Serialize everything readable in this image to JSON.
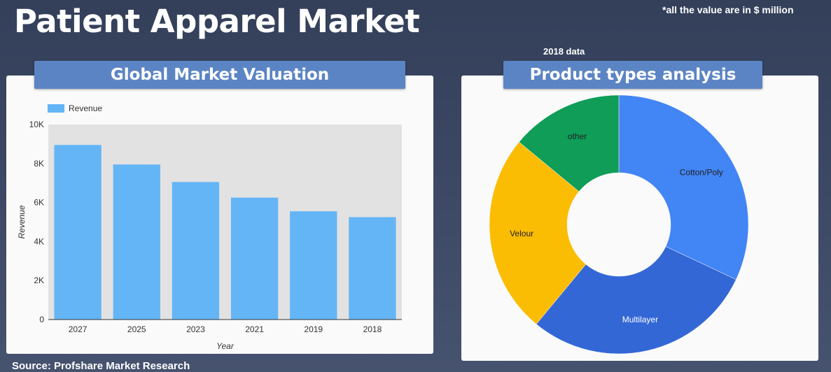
{
  "page": {
    "title": "Patient Apparel Market",
    "note": "*all the value are in $ million",
    "date_note": "2018 data",
    "source": "Source: Profshare Market Research"
  },
  "panels": {
    "left_title": "Global Market Valuation",
    "right_title": "Product types analysis"
  },
  "colors": {
    "bar": "#64b5f6",
    "cotton_poly": "#4285f4",
    "multilayer": "#3367d6",
    "velour": "#fbbc04",
    "other": "#0f9d58"
  },
  "chart_data": [
    {
      "type": "bar",
      "title": "Global Market Valuation",
      "categories": [
        "2027",
        "2025",
        "2023",
        "2021",
        "2019",
        "2018"
      ],
      "series": [
        {
          "name": "Revenue",
          "values": [
            8950,
            7950,
            7050,
            6250,
            5550,
            5250
          ]
        }
      ],
      "xlabel": "Year",
      "ylabel": "Revenue",
      "ylim": [
        0,
        10000
      ],
      "yticks": [
        "0",
        "2K",
        "4K",
        "6K",
        "8K",
        "10K"
      ],
      "legend": "top-left",
      "grid": false
    },
    {
      "type": "pie",
      "title": "Product types analysis",
      "donut": true,
      "slices": [
        {
          "label": "Cotton/Poly",
          "value": 32
        },
        {
          "label": "Multilayer",
          "value": 29
        },
        {
          "label": "Velour",
          "value": 25
        },
        {
          "label": "other",
          "value": 14
        }
      ]
    }
  ]
}
